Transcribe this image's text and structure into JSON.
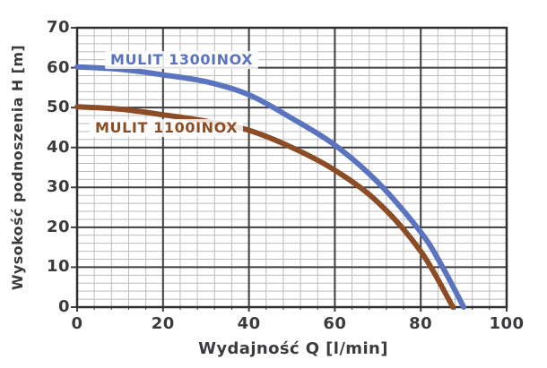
{
  "chart_data": {
    "type": "line",
    "xlabel": "Wydajność Q [l/min]",
    "ylabel": "Wysokość podnoszenia H [m]",
    "xlim": [
      0,
      100
    ],
    "ylim": [
      0,
      70
    ],
    "x_ticks": [
      0,
      20,
      40,
      60,
      80,
      100
    ],
    "y_ticks": [
      0,
      10,
      20,
      30,
      40,
      50,
      60,
      70
    ],
    "x_major_step": 20,
    "y_major_step": 10,
    "x_minor_step": 4,
    "y_minor_step": 2,
    "grid": true,
    "legend_position": "inline-labels",
    "series": [
      {
        "name": "MULIT 1300INOX",
        "color": "#5b74c0",
        "points": [
          [
            0,
            60.2
          ],
          [
            10,
            59.6
          ],
          [
            20,
            58.2
          ],
          [
            30,
            56.5
          ],
          [
            40,
            53.2
          ],
          [
            50,
            47.3
          ],
          [
            60,
            40.6
          ],
          [
            70,
            31.3
          ],
          [
            80,
            18.8
          ],
          [
            85,
            10.2
          ],
          [
            90,
            0
          ]
        ]
      },
      {
        "name": "MULIT 1100INOX",
        "color": "#8c4d26",
        "points": [
          [
            0,
            50.2
          ],
          [
            10,
            49.6
          ],
          [
            20,
            48.2
          ],
          [
            30,
            46.6
          ],
          [
            40,
            44.3
          ],
          [
            50,
            40.0
          ],
          [
            60,
            34.3
          ],
          [
            70,
            26.3
          ],
          [
            80,
            14.0
          ],
          [
            87.5,
            0
          ]
        ]
      }
    ]
  },
  "colors": {
    "background": "#ffffff",
    "axis_text": "#3b3b3d",
    "plot_border": "#2f2f31",
    "grid_major": "#3e3e40",
    "grid_minor": "#bcbcbc",
    "series_1300": "#5b74c0",
    "series_1100": "#8c4d26"
  }
}
